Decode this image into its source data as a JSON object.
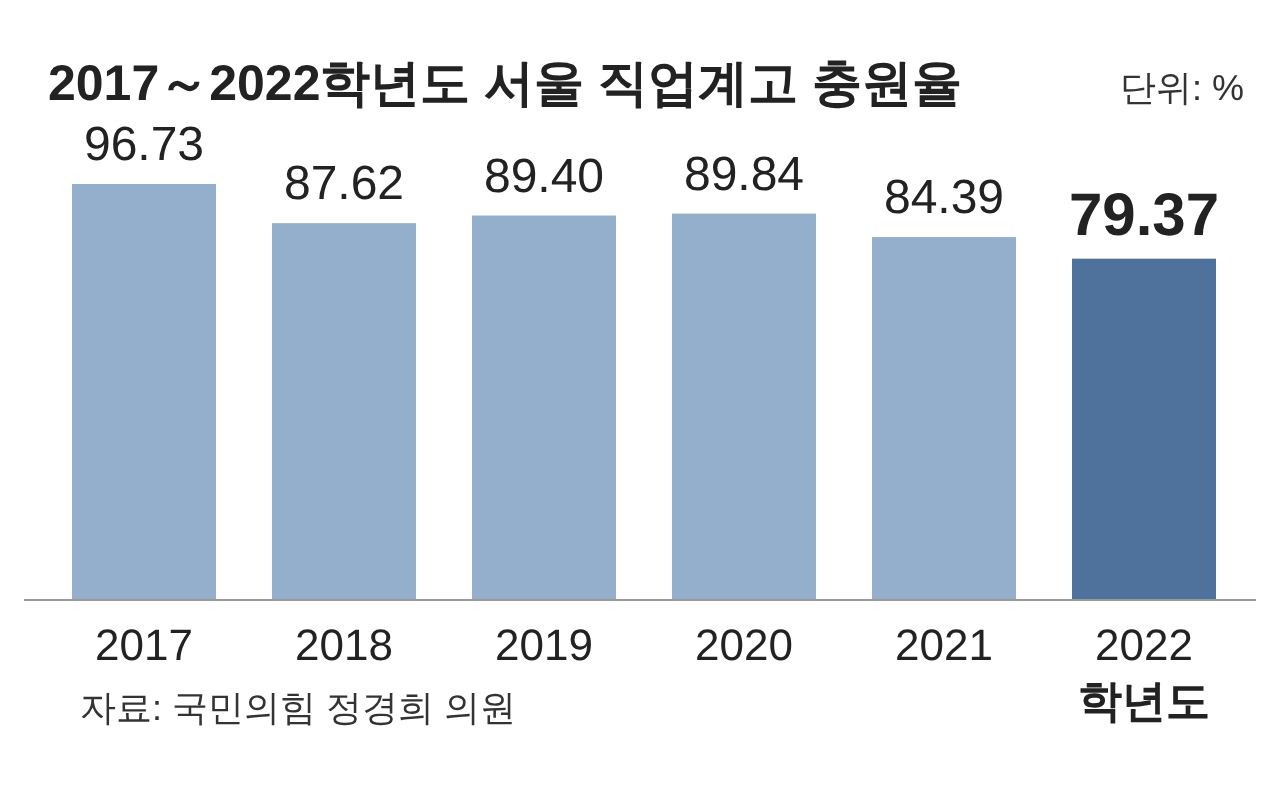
{
  "chart_data": {
    "type": "bar",
    "title": "2017～2022학년도 서울 직업계고 충원율",
    "subtitle": "단위: %",
    "categories": [
      "2017",
      "2018",
      "2019",
      "2020",
      "2021",
      "2022\n학년도"
    ],
    "values": [
      96.73,
      87.62,
      89.4,
      89.84,
      84.39,
      79.37
    ],
    "value_labels": [
      "96.73",
      "87.62",
      "89.40",
      "89.84",
      "84.39",
      "79.37"
    ],
    "colors": [
      "#94afcc",
      "#94afcc",
      "#94afcc",
      "#94afcc",
      "#94afcc",
      "#4f729c"
    ],
    "annotations": [
      "자료: 국민의힘 정경희 의원"
    ]
  }
}
